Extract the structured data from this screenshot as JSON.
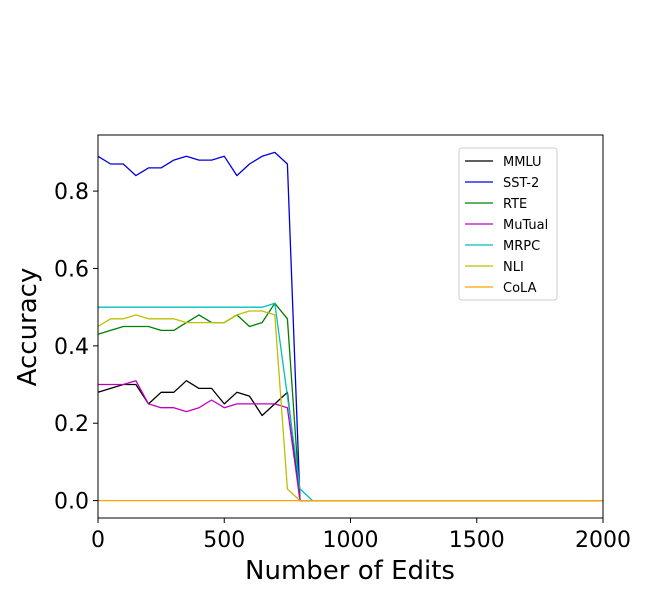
{
  "chart_data": {
    "type": "line",
    "title": "",
    "xlabel": "Number of Edits",
    "ylabel": "Accuracy",
    "xlim": [
      0,
      2000
    ],
    "ylim": [
      -0.045,
      0.945
    ],
    "xticks": [
      0,
      500,
      1000,
      1500,
      2000
    ],
    "xtick_labels": [
      "0",
      "500",
      "1000",
      "1500",
      "2000"
    ],
    "yticks": [
      0.0,
      0.2,
      0.4,
      0.6,
      0.8
    ],
    "ytick_labels": [
      "0.0",
      "0.2",
      "0.4",
      "0.6",
      "0.8"
    ],
    "grid": false,
    "legend_position": "top-right",
    "series": [
      {
        "name": "MMLU",
        "color": "#000000",
        "x": [
          0,
          50,
          100,
          150,
          200,
          250,
          300,
          350,
          400,
          450,
          500,
          550,
          600,
          650,
          700,
          750,
          800,
          850,
          900,
          1000,
          1500,
          2000
        ],
        "y": [
          0.28,
          0.29,
          0.3,
          0.3,
          0.25,
          0.28,
          0.28,
          0.31,
          0.29,
          0.29,
          0.25,
          0.28,
          0.27,
          0.22,
          0.25,
          0.28,
          0.0,
          0.0,
          0.0,
          0.0,
          0.0,
          0.0
        ]
      },
      {
        "name": "SST-2",
        "color": "#0000dd",
        "x": [
          0,
          50,
          100,
          150,
          200,
          250,
          300,
          350,
          400,
          450,
          500,
          550,
          600,
          650,
          700,
          750,
          800,
          850,
          900,
          1000,
          1500,
          2000
        ],
        "y": [
          0.89,
          0.87,
          0.87,
          0.84,
          0.86,
          0.86,
          0.88,
          0.89,
          0.88,
          0.88,
          0.89,
          0.84,
          0.87,
          0.89,
          0.9,
          0.87,
          0.0,
          0.0,
          0.0,
          0.0,
          0.0,
          0.0
        ]
      },
      {
        "name": "RTE",
        "color": "#008000",
        "x": [
          0,
          50,
          100,
          150,
          200,
          250,
          300,
          350,
          400,
          450,
          500,
          550,
          600,
          650,
          700,
          750,
          800,
          850,
          900,
          1000,
          1500,
          2000
        ],
        "y": [
          0.43,
          0.44,
          0.45,
          0.45,
          0.45,
          0.44,
          0.44,
          0.46,
          0.48,
          0.46,
          0.46,
          0.48,
          0.45,
          0.46,
          0.51,
          0.47,
          0.0,
          0.0,
          0.0,
          0.0,
          0.0,
          0.0
        ]
      },
      {
        "name": "MuTual",
        "color": "#c000c0",
        "x": [
          0,
          50,
          100,
          150,
          200,
          250,
          300,
          350,
          400,
          450,
          500,
          550,
          600,
          650,
          700,
          750,
          800,
          850,
          900,
          1000,
          1500,
          2000
        ],
        "y": [
          0.3,
          0.3,
          0.3,
          0.31,
          0.25,
          0.24,
          0.24,
          0.23,
          0.24,
          0.26,
          0.24,
          0.25,
          0.25,
          0.25,
          0.25,
          0.24,
          0.0,
          0.0,
          0.0,
          0.0,
          0.0,
          0.0
        ]
      },
      {
        "name": "MRPC",
        "color": "#00bfbf",
        "x": [
          0,
          50,
          100,
          150,
          200,
          250,
          300,
          350,
          400,
          450,
          500,
          550,
          600,
          650,
          700,
          750,
          800,
          850,
          900,
          1000,
          1500,
          2000
        ],
        "y": [
          0.5,
          0.5,
          0.5,
          0.5,
          0.5,
          0.5,
          0.5,
          0.5,
          0.5,
          0.5,
          0.5,
          0.5,
          0.5,
          0.5,
          0.51,
          0.27,
          0.03,
          0.0,
          0.0,
          0.0,
          0.0,
          0.0
        ]
      },
      {
        "name": "NLI",
        "color": "#bfbf00",
        "x": [
          0,
          50,
          100,
          150,
          200,
          250,
          300,
          350,
          400,
          450,
          500,
          550,
          600,
          650,
          700,
          750,
          800,
          850,
          900,
          1000,
          1500,
          2000
        ],
        "y": [
          0.45,
          0.47,
          0.47,
          0.48,
          0.47,
          0.47,
          0.47,
          0.46,
          0.46,
          0.46,
          0.46,
          0.48,
          0.49,
          0.49,
          0.48,
          0.03,
          0.0,
          0.0,
          0.0,
          0.0,
          0.0,
          0.0
        ]
      },
      {
        "name": "CoLA",
        "color": "#ffa500",
        "x": [
          0,
          50,
          100,
          150,
          200,
          250,
          300,
          350,
          400,
          450,
          500,
          550,
          600,
          650,
          700,
          750,
          800,
          850,
          900,
          1000,
          1500,
          2000
        ],
        "y": [
          0.0,
          0.0,
          0.0,
          0.0,
          0.0,
          0.0,
          0.0,
          0.0,
          0.0,
          0.0,
          0.0,
          0.0,
          0.0,
          0.0,
          0.0,
          0.0,
          0.0,
          0.0,
          0.0,
          0.0,
          0.0,
          0.0
        ]
      }
    ]
  }
}
